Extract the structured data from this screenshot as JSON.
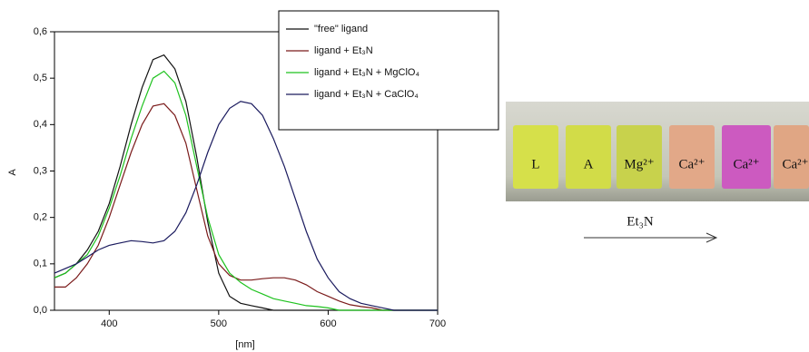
{
  "chart_data": {
    "type": "line",
    "xlabel": "[nm]",
    "ylabel": "A",
    "xlim": [
      350,
      700
    ],
    "ylim": [
      0,
      0.6
    ],
    "xticks": [
      400,
      500,
      600,
      700
    ],
    "yticks": [
      {
        "value": 0,
        "label": "0,0"
      },
      {
        "value": 0.1,
        "label": "0,1"
      },
      {
        "value": 0.2,
        "label": "0,2"
      },
      {
        "value": 0.3,
        "label": "0,3"
      },
      {
        "value": 0.4,
        "label": "0,4"
      },
      {
        "value": 0.5,
        "label": "0,5"
      },
      {
        "value": 0.6,
        "label": "0,6"
      }
    ],
    "x": [
      350,
      360,
      370,
      380,
      390,
      400,
      410,
      420,
      430,
      440,
      450,
      460,
      470,
      480,
      490,
      500,
      510,
      520,
      530,
      540,
      550,
      560,
      570,
      580,
      590,
      600,
      610,
      620,
      630,
      640,
      650,
      660,
      670,
      680,
      690,
      700
    ],
    "series": [
      {
        "name": "\"free\" ligand",
        "color": "#111111",
        "values": [
          0.07,
          0.08,
          0.1,
          0.13,
          0.17,
          0.23,
          0.31,
          0.4,
          0.48,
          0.54,
          0.55,
          0.52,
          0.45,
          0.33,
          0.19,
          0.08,
          0.03,
          0.015,
          0.01,
          0.005,
          0,
          0,
          0,
          0,
          0,
          0,
          0,
          0,
          0,
          0,
          0,
          0,
          0,
          0,
          0,
          0
        ]
      },
      {
        "name": "ligand + Et₃N",
        "color": "#7a1a1a",
        "values": [
          0.05,
          0.05,
          0.07,
          0.1,
          0.14,
          0.2,
          0.27,
          0.34,
          0.4,
          0.44,
          0.445,
          0.42,
          0.36,
          0.26,
          0.16,
          0.1,
          0.075,
          0.065,
          0.065,
          0.068,
          0.07,
          0.07,
          0.065,
          0.055,
          0.04,
          0.03,
          0.02,
          0.012,
          0.008,
          0.005,
          0,
          0,
          0,
          0,
          0,
          0
        ]
      },
      {
        "name": "ligand + Et₃N + MgClO₄",
        "color": "#1ec21e",
        "values": [
          0.07,
          0.08,
          0.1,
          0.12,
          0.16,
          0.22,
          0.29,
          0.37,
          0.44,
          0.5,
          0.515,
          0.49,
          0.42,
          0.31,
          0.2,
          0.12,
          0.08,
          0.06,
          0.045,
          0.035,
          0.025,
          0.02,
          0.015,
          0.01,
          0.008,
          0.005,
          0,
          0,
          0,
          0,
          0,
          0,
          0,
          0,
          0,
          0
        ]
      },
      {
        "name": "ligand + Et₃N + CaClO₄",
        "color": "#1a1a5e",
        "values": [
          0.08,
          0.09,
          0.1,
          0.115,
          0.13,
          0.14,
          0.145,
          0.15,
          0.148,
          0.145,
          0.15,
          0.17,
          0.21,
          0.27,
          0.34,
          0.4,
          0.435,
          0.45,
          0.445,
          0.42,
          0.37,
          0.31,
          0.24,
          0.17,
          0.11,
          0.07,
          0.04,
          0.025,
          0.015,
          0.01,
          0.005,
          0,
          0,
          0,
          0,
          0
        ]
      }
    ]
  },
  "photo": {
    "vial_labels": [
      "L",
      "A",
      "Mg²⁺",
      "Ca²⁺",
      "Ca²⁺",
      "Ca²⁺"
    ],
    "arrow_label": "Et₃N"
  }
}
